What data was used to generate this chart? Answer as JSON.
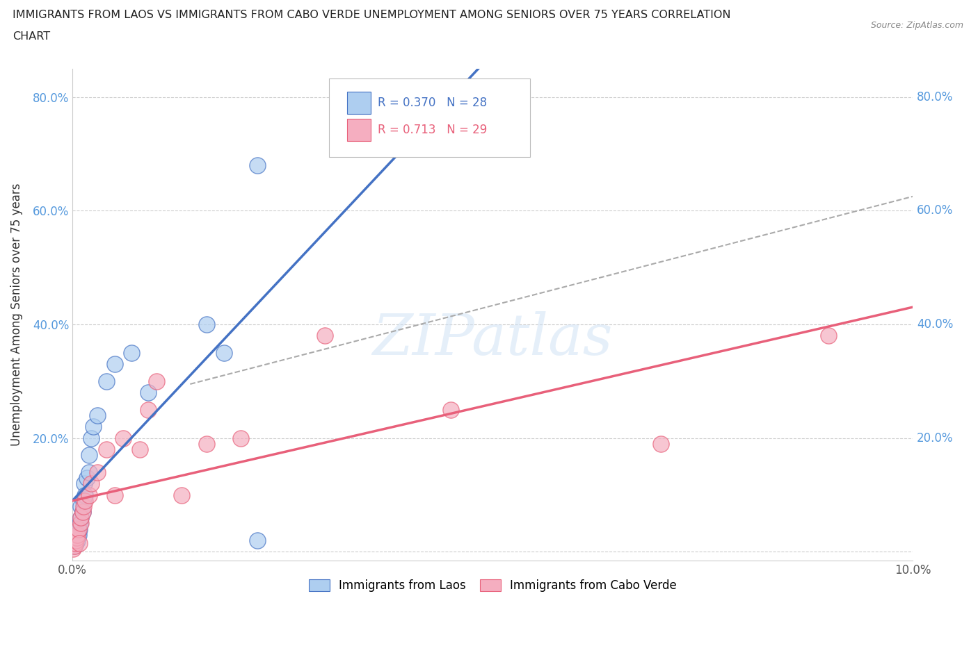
{
  "title_line1": "IMMIGRANTS FROM LAOS VS IMMIGRANTS FROM CABO VERDE UNEMPLOYMENT AMONG SENIORS OVER 75 YEARS CORRELATION",
  "title_line2": "CHART",
  "source": "Source: ZipAtlas.com",
  "ylabel": "Unemployment Among Seniors over 75 years",
  "R_laos": 0.37,
  "N_laos": 28,
  "R_cabo": 0.713,
  "N_cabo": 29,
  "color_laos": "#aecef0",
  "color_cabo": "#f5aec0",
  "line_color_laos": "#4472c4",
  "line_color_cabo": "#e8607a",
  "legend_laos": "Immigrants from Laos",
  "legend_cabo": "Immigrants from Cabo Verde",
  "laos_x": [
    0.0002,
    0.0003,
    0.0004,
    0.0005,
    0.0006,
    0.0007,
    0.0008,
    0.0009,
    0.001,
    0.001,
    0.0012,
    0.0013,
    0.0014,
    0.0015,
    0.0017,
    0.002,
    0.002,
    0.0022,
    0.0025,
    0.003,
    0.004,
    0.005,
    0.007,
    0.009,
    0.016,
    0.018,
    0.022,
    0.022
  ],
  "laos_y": [
    0.01,
    0.02,
    0.015,
    0.025,
    0.02,
    0.03,
    0.04,
    0.05,
    0.06,
    0.08,
    0.07,
    0.09,
    0.12,
    0.1,
    0.13,
    0.14,
    0.17,
    0.2,
    0.22,
    0.24,
    0.3,
    0.33,
    0.35,
    0.28,
    0.4,
    0.35,
    0.68,
    0.02
  ],
  "cabo_x": [
    0.0001,
    0.0002,
    0.0003,
    0.0004,
    0.0005,
    0.0006,
    0.0007,
    0.0008,
    0.001,
    0.001,
    0.0012,
    0.0013,
    0.0015,
    0.002,
    0.0022,
    0.003,
    0.004,
    0.005,
    0.006,
    0.008,
    0.009,
    0.01,
    0.013,
    0.016,
    0.02,
    0.03,
    0.045,
    0.07,
    0.09
  ],
  "cabo_y": [
    0.005,
    0.01,
    0.015,
    0.02,
    0.025,
    0.03,
    0.04,
    0.015,
    0.05,
    0.06,
    0.07,
    0.08,
    0.09,
    0.1,
    0.12,
    0.14,
    0.18,
    0.1,
    0.2,
    0.18,
    0.25,
    0.3,
    0.1,
    0.19,
    0.2,
    0.38,
    0.25,
    0.19,
    0.38
  ],
  "xlim": [
    0.0,
    0.1
  ],
  "ylim": [
    -0.015,
    0.85
  ],
  "yticks": [
    0.0,
    0.2,
    0.4,
    0.6,
    0.8
  ],
  "xticks": [
    0.0,
    0.02,
    0.04,
    0.06,
    0.08,
    0.1
  ]
}
